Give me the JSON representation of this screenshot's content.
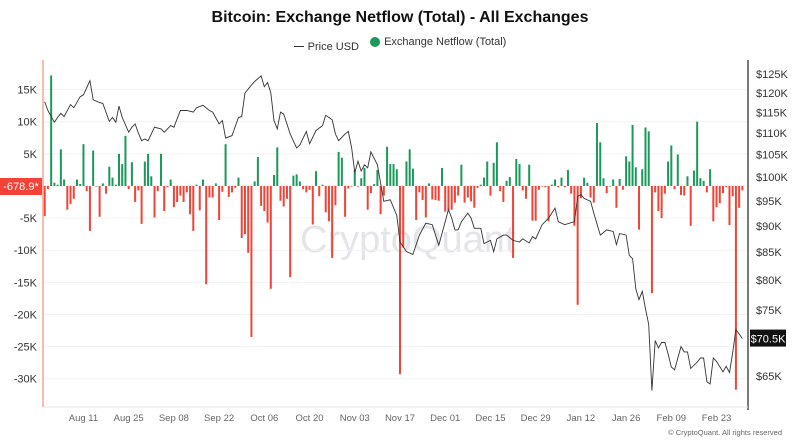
{
  "chart_data": {
    "type": "bar+line",
    "title": "Bitcoin: Exchange Netflow (Total) - All Exchanges",
    "legend": [
      {
        "name": "Price USD",
        "marker": "line",
        "color": "#333333"
      },
      {
        "name": "Exchange Netflow (Total)",
        "marker": "dot",
        "color": "#1a9a5a"
      }
    ],
    "legend_placement": "top-center",
    "xlim": [
      "Jul 30",
      "Mar 03"
    ],
    "x_ticks": [
      "Aug 11",
      "Aug 25",
      "Sep 08",
      "Sep 22",
      "Oct 06",
      "Oct 20",
      "Nov 03",
      "Nov 17",
      "Dec 01",
      "Dec 15",
      "Dec 29",
      "Jan 12",
      "Jan 26",
      "Feb 09",
      "Feb 23"
    ],
    "left_axis": {
      "ticks": [
        15,
        10,
        5,
        0,
        -5,
        -10,
        -15,
        -20,
        -25,
        -30
      ],
      "tick_labels": [
        "15K",
        "10K",
        "5K",
        "",
        "-5K",
        "-10K",
        "-15K",
        "-20K",
        "-25K",
        "-30K"
      ],
      "ylim": [
        -34.4,
        19.6
      ],
      "grid": true
    },
    "right_axis": {
      "scale": "log",
      "ticks": [
        125,
        120,
        115,
        110,
        105,
        100,
        95,
        90,
        85,
        80,
        75,
        65
      ],
      "tick_labels": [
        "$125K",
        "$120K",
        "$115K",
        "$110K",
        "$105K",
        "$100K",
        "$95K",
        "$90K",
        "$85K",
        "$80K",
        "$75K",
        "$65K"
      ],
      "ylim": [
        61,
        128
      ]
    },
    "colors": {
      "positive": "#1a9a5a",
      "negative": "#f44336",
      "price": "#333333"
    },
    "netflow_series": {
      "name": "Exchange Netflow (Total)",
      "interval": "daily",
      "values": [
        -4.7,
        -0.5,
        17.2,
        0.5,
        0.2,
        5.7,
        1,
        -3.7,
        -2.8,
        -2,
        1,
        0.3,
        6.5,
        -0.8,
        -7,
        5.5,
        0,
        -4.8,
        0.4,
        -1.2,
        3,
        1.3,
        0.2,
        5,
        3.4,
        7.8,
        -0.5,
        3.7,
        -2.5,
        -0.7,
        -5.9,
        3.8,
        5,
        1.5,
        -4.9,
        -0.8,
        5,
        -3.9,
        -0.2,
        1,
        -3.3,
        -2.5,
        -1.5,
        -2.5,
        -1,
        -4.4,
        -7,
        0.2,
        -3.8,
        1,
        -15.3,
        -1.8,
        -1.8,
        0.4,
        -5.3,
        -0.9,
        6.5,
        -1.7,
        -1,
        -0.3,
        1.3,
        -8.1,
        -7.5,
        -10.4,
        -23.5,
        0.7,
        4.5,
        -3.1,
        -3.9,
        -5.7,
        -16,
        1.7,
        6,
        -2.3,
        -3.2,
        -2,
        -14.2,
        1.6,
        1.8,
        0.7,
        -0.5,
        -1,
        -0.6,
        -6,
        2.3,
        -1.6,
        0.2,
        -4.1,
        -5.5,
        -11.2,
        -3,
        5.3,
        4.4,
        -4.8,
        -0.4,
        -0.1,
        2.5,
        -0.1,
        1.2,
        2.8,
        -3.7,
        -1.1,
        0.3,
        2.5,
        -4.4,
        -1.5,
        6.1,
        3.4,
        3.4,
        2.6,
        -29.3,
        -9.6,
        3.8,
        5.7,
        2.7,
        -5.3,
        -1,
        -2.2,
        -4.9,
        0.4,
        -2.1,
        -2.2,
        -2.3,
        2.8,
        -4,
        -3.8,
        -3.7,
        -2.6,
        -1.5,
        3.3,
        -2.6,
        -1.8,
        -2.4,
        -3.4,
        -0.3,
        0.2,
        1.3,
        3.8,
        -1.5,
        3.6,
        6.8,
        -0.8,
        -2.5,
        0.8,
        1.4,
        -11.2,
        4.2,
        3.4,
        -0.7,
        -2,
        3.3,
        -5.4,
        -5.4,
        -0.6,
        -0.1,
        -0.2,
        -5.5,
        0.2,
        1,
        -0.2,
        1.3,
        -0.2,
        2.5,
        -1.2,
        -6.2,
        -18.5,
        -1.9,
        1.3,
        0.5,
        -1.8,
        -2.6,
        9.8,
        6.8,
        1.2,
        -1.1,
        0,
        1,
        -3.4,
        1.1,
        -0.6,
        4.6,
        3.8,
        9.5,
        2.9,
        -6.8,
        2.6,
        9.1,
        8.5,
        -16.7,
        -1,
        -3.9,
        -5,
        -1.2,
        3.8,
        6.3,
        -0.5,
        4.9,
        -1.4,
        -1.5,
        1.5,
        -6.2,
        2.4,
        10,
        1.2,
        0.8,
        -1,
        2.6,
        -5.5,
        -3.3,
        -2.7,
        -1.1,
        -0.2,
        -6.1,
        -1.6,
        -31.7,
        -3.4,
        -0.6789
      ]
    },
    "price_series": {
      "name": "Price USD",
      "points": [
        [
          "Jul 30",
          117.7
        ],
        [
          "Jul 31",
          115.5
        ],
        [
          "Aug 02",
          112.6
        ],
        [
          "Aug 03",
          113.8
        ],
        [
          "Aug 04",
          114.8
        ],
        [
          "Aug 05",
          114
        ],
        [
          "Aug 07",
          117
        ],
        [
          "Aug 08",
          116.2
        ],
        [
          "Aug 10",
          119
        ],
        [
          "Aug 11",
          119.5
        ],
        [
          "Aug 13",
          123.2
        ],
        [
          "Aug 14",
          118.2
        ],
        [
          "Aug 16",
          117.5
        ],
        [
          "Aug 17",
          117.3
        ],
        [
          "Aug 19",
          112.8
        ],
        [
          "Aug 20",
          113.8
        ],
        [
          "Aug 21",
          112.6
        ],
        [
          "Aug 22",
          116.6
        ],
        [
          "Aug 23",
          113.8
        ],
        [
          "Aug 25",
          110.2
        ],
        [
          "Aug 26",
          111.4
        ],
        [
          "Aug 27",
          112.2
        ],
        [
          "Aug 28",
          110
        ],
        [
          "Aug 29",
          108.2
        ],
        [
          "Aug 30",
          108.6
        ],
        [
          "Aug 31",
          108.2
        ],
        [
          "Sep 02",
          111.4
        ],
        [
          "Sep 04",
          111
        ],
        [
          "Sep 05",
          110.2
        ],
        [
          "Sep 07",
          111.8
        ],
        [
          "Sep 08",
          111.4
        ],
        [
          "Sep 10",
          115.5
        ],
        [
          "Sep 12",
          115.5
        ],
        [
          "Sep 14",
          115.1
        ],
        [
          "Sep 15",
          116.2
        ],
        [
          "Sep 17",
          116.8
        ],
        [
          "Sep 19",
          115.5
        ],
        [
          "Sep 20",
          115.1
        ],
        [
          "Sep 22",
          112.2
        ],
        [
          "Sep 23",
          113
        ],
        [
          "Sep 24",
          108.8
        ],
        [
          "Sep 26",
          109.4
        ],
        [
          "Sep 28",
          113.8
        ],
        [
          "Sep 29",
          114
        ],
        [
          "Sep 30",
          120
        ],
        [
          "Oct 02",
          122
        ],
        [
          "Oct 03",
          123
        ],
        [
          "Oct 05",
          124.5
        ],
        [
          "Oct 06",
          121.6
        ],
        [
          "Oct 07",
          122.7
        ],
        [
          "Oct 08",
          120
        ],
        [
          "Oct 09",
          113
        ],
        [
          "Oct 10",
          111
        ],
        [
          "Oct 11",
          115.1
        ],
        [
          "Oct 12",
          114.6
        ],
        [
          "Oct 14",
          109.8
        ],
        [
          "Oct 16",
          106.5
        ],
        [
          "Oct 17",
          107.2
        ],
        [
          "Oct 19",
          110.4
        ],
        [
          "Oct 20",
          107.5
        ],
        [
          "Oct 22",
          110.6
        ],
        [
          "Oct 24",
          111.8
        ],
        [
          "Oct 25",
          114.3
        ],
        [
          "Oct 27",
          113.2
        ],
        [
          "Oct 28",
          109.8
        ],
        [
          "Oct 29",
          108.2
        ],
        [
          "Oct 31",
          109.8
        ],
        [
          "Nov 01",
          110.4
        ],
        [
          "Nov 02",
          106.6
        ],
        [
          "Nov 03",
          101
        ],
        [
          "Nov 04",
          103.5
        ],
        [
          "Nov 05",
          101.3
        ],
        [
          "Nov 06",
          102.7
        ],
        [
          "Nov 07",
          102
        ],
        [
          "Nov 08",
          105.6
        ],
        [
          "Nov 10",
          102.7
        ],
        [
          "Nov 11",
          98.7
        ],
        [
          "Nov 12",
          94.9
        ],
        [
          "Nov 14",
          95.2
        ],
        [
          "Nov 16",
          92
        ],
        [
          "Nov 17",
          86.9
        ],
        [
          "Nov 19",
          85.1
        ],
        [
          "Nov 21",
          84.6
        ],
        [
          "Nov 23",
          88.2
        ],
        [
          "Nov 25",
          90.5
        ],
        [
          "Nov 27",
          90.2
        ],
        [
          "Nov 28",
          88.2
        ],
        [
          "Nov 29",
          86.3
        ],
        [
          "Dec 01",
          90.8
        ],
        [
          "Dec 02",
          93.2
        ],
        [
          "Dec 03",
          91.5
        ],
        [
          "Dec 04",
          89.2
        ],
        [
          "Dec 05",
          89.2
        ],
        [
          "Dec 06",
          90.8
        ],
        [
          "Dec 08",
          92.5
        ],
        [
          "Dec 09",
          91.5
        ],
        [
          "Dec 10",
          89.5
        ],
        [
          "Dec 12",
          89.5
        ],
        [
          "Dec 13",
          86.6
        ],
        [
          "Dec 15",
          87.2
        ],
        [
          "Dec 16",
          85.1
        ],
        [
          "Dec 17",
          87.5
        ],
        [
          "Dec 19",
          88.2
        ],
        [
          "Dec 20",
          88.2
        ],
        [
          "Dec 22",
          87.2
        ],
        [
          "Dec 24",
          86.9
        ],
        [
          "Dec 25",
          87.5
        ],
        [
          "Dec 27",
          86.7
        ],
        [
          "Dec 28",
          87.9
        ],
        [
          "Dec 29",
          87.5
        ],
        [
          "Dec 31",
          90.2
        ],
        [
          "Jan 02",
          91.5
        ],
        [
          "Jan 04",
          93.5
        ],
        [
          "Jan 05",
          90.8
        ],
        [
          "Jan 07",
          90.2
        ],
        [
          "Jan 10",
          90.8
        ],
        [
          "Jan 11",
          95.9
        ],
        [
          "Jan 12",
          96.3
        ],
        [
          "Jan 13",
          95.5
        ],
        [
          "Jan 15",
          94.9
        ],
        [
          "Jan 16",
          92.5
        ],
        [
          "Jan 18",
          88.2
        ],
        [
          "Jan 20",
          89.2
        ],
        [
          "Jan 22",
          88.9
        ],
        [
          "Jan 23",
          86.4
        ],
        [
          "Jan 24",
          88.5
        ],
        [
          "Jan 26",
          88.2
        ],
        [
          "Jan 27",
          84.4
        ],
        [
          "Jan 28",
          83.8
        ],
        [
          "Jan 29",
          78.5
        ],
        [
          "Jan 30",
          76.7
        ],
        [
          "Jan 31",
          78.1
        ],
        [
          "Feb 01",
          75.2
        ],
        [
          "Feb 02",
          72.7
        ],
        [
          "Feb 03",
          63
        ],
        [
          "Feb 04",
          70.2
        ],
        [
          "Feb 05",
          69.1
        ],
        [
          "Feb 06",
          69.9
        ],
        [
          "Feb 07",
          69.9
        ],
        [
          "Feb 08",
          68.2
        ],
        [
          "Feb 09",
          66.3
        ],
        [
          "Feb 10",
          65.9
        ],
        [
          "Feb 12",
          69.3
        ],
        [
          "Feb 13",
          68.5
        ],
        [
          "Feb 14",
          68.5
        ],
        [
          "Feb 15",
          66.1
        ],
        [
          "Feb 17",
          67
        ],
        [
          "Feb 18",
          67.6
        ],
        [
          "Feb 19",
          67.6
        ],
        [
          "Feb 20",
          64.2
        ],
        [
          "Feb 21",
          63.9
        ],
        [
          "Feb 22",
          67.6
        ],
        [
          "Feb 23",
          67.1
        ],
        [
          "Feb 25",
          65.6
        ],
        [
          "Feb 26",
          66.4
        ],
        [
          "Feb 27",
          65.5
        ],
        [
          "Feb 28",
          68.4
        ],
        [
          "Mar 01",
          71.9
        ],
        [
          "Mar 02",
          71.2
        ],
        [
          "Mar 03",
          70.5
        ]
      ]
    },
    "latest_netflow_label": "-678.9*",
    "latest_price_label": "$70.5K",
    "watermark": "CryptoQuant"
  },
  "footer": "© CryptoQuant. All rights reserved"
}
